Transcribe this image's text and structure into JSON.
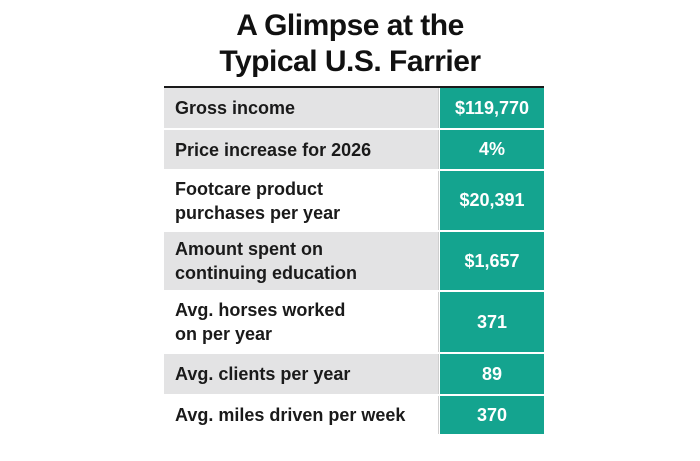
{
  "title": {
    "line1": "A Glimpse at the",
    "line2": "Typical U.S. Farrier"
  },
  "colors": {
    "accent": "#14a48f",
    "row_shade": "#e3e3e4"
  },
  "rows": [
    {
      "label": "Gross income",
      "value": "$119,770"
    },
    {
      "label": "Price increase for 2026",
      "value": "4%"
    },
    {
      "label_line1": "Footcare product",
      "label_line2": "purchases per year",
      "value": "$20,391"
    },
    {
      "label_line1": "Amount spent on",
      "label_line2": "continuing education",
      "value": "$1,657"
    },
    {
      "label_line1": "Avg. horses worked",
      "label_line2": "on per year",
      "value": "371"
    },
    {
      "label": "Avg. clients per year",
      "value": "89"
    },
    {
      "label": "Avg. miles driven per week",
      "value": "370"
    }
  ]
}
